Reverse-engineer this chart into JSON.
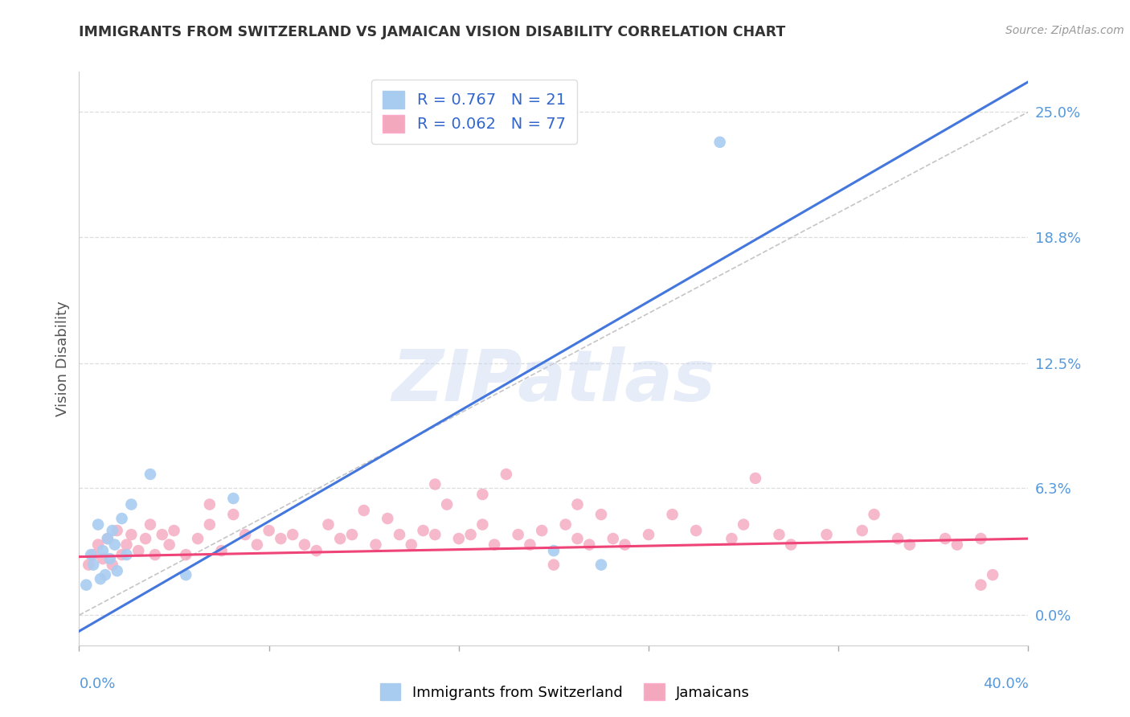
{
  "title": "IMMIGRANTS FROM SWITZERLAND VS JAMAICAN VISION DISABILITY CORRELATION CHART",
  "source": "Source: ZipAtlas.com",
  "ylabel": "Vision Disability",
  "ytick_labels": [
    "0.0%",
    "6.3%",
    "12.5%",
    "18.8%",
    "25.0%"
  ],
  "ytick_values": [
    0.0,
    6.3,
    12.5,
    18.8,
    25.0
  ],
  "xlim": [
    0.0,
    40.0
  ],
  "ylim": [
    -1.5,
    27.0
  ],
  "blue_color": "#A8CCF0",
  "pink_color": "#F4A8BE",
  "blue_line_color": "#4477DD",
  "pink_line_color": "#EE4477",
  "diagonal_color": "#BBBBBB",
  "watermark": "ZIPatlas",
  "legend_R_blue": "0.767",
  "legend_N_blue": "21",
  "legend_R_pink": "0.062",
  "legend_N_pink": "77",
  "legend_label_blue": "Immigrants from Switzerland",
  "legend_label_pink": "Jamaicans",
  "blue_line_x0": 0.0,
  "blue_line_y0": -0.8,
  "blue_line_x1": 40.0,
  "blue_line_y1": 26.5,
  "pink_line_x0": 0.0,
  "pink_line_y0": 2.9,
  "pink_line_x1": 40.0,
  "pink_line_y1": 3.8,
  "diag_x0": 0.0,
  "diag_y0": 0.0,
  "diag_x1": 40.0,
  "diag_y1": 25.0,
  "blue_scatter_x": [
    0.3,
    0.5,
    0.6,
    0.8,
    0.9,
    1.0,
    1.1,
    1.2,
    1.3,
    1.4,
    1.5,
    1.6,
    1.8,
    2.0,
    2.2,
    3.0,
    4.5,
    6.5,
    20.0,
    22.0,
    27.0
  ],
  "blue_scatter_y": [
    1.5,
    3.0,
    2.5,
    4.5,
    1.8,
    3.2,
    2.0,
    3.8,
    2.8,
    4.2,
    3.5,
    2.2,
    4.8,
    3.0,
    5.5,
    7.0,
    2.0,
    5.8,
    3.2,
    2.5,
    23.5
  ],
  "pink_scatter_x": [
    0.4,
    0.6,
    0.8,
    1.0,
    1.2,
    1.4,
    1.6,
    1.8,
    2.0,
    2.2,
    2.5,
    2.8,
    3.0,
    3.2,
    3.5,
    3.8,
    4.0,
    4.5,
    5.0,
    5.5,
    6.0,
    6.5,
    7.0,
    7.5,
    8.0,
    8.5,
    9.0,
    9.5,
    10.0,
    10.5,
    11.0,
    11.5,
    12.0,
    12.5,
    13.0,
    13.5,
    14.0,
    14.5,
    15.0,
    15.5,
    16.0,
    16.5,
    17.0,
    17.5,
    18.0,
    18.5,
    19.0,
    19.5,
    20.5,
    21.0,
    21.5,
    22.0,
    22.5,
    23.0,
    24.0,
    25.0,
    26.0,
    27.5,
    28.0,
    29.5,
    30.0,
    31.5,
    33.0,
    34.5,
    35.0,
    36.5,
    37.0,
    38.0,
    38.5,
    5.5,
    15.0,
    17.0,
    21.0,
    28.5,
    33.5,
    38.0,
    20.0
  ],
  "pink_scatter_y": [
    2.5,
    3.0,
    3.5,
    2.8,
    3.8,
    2.5,
    4.2,
    3.0,
    3.5,
    4.0,
    3.2,
    3.8,
    4.5,
    3.0,
    4.0,
    3.5,
    4.2,
    3.0,
    3.8,
    4.5,
    3.2,
    5.0,
    4.0,
    3.5,
    4.2,
    3.8,
    4.0,
    3.5,
    3.2,
    4.5,
    3.8,
    4.0,
    5.2,
    3.5,
    4.8,
    4.0,
    3.5,
    4.2,
    4.0,
    5.5,
    3.8,
    4.0,
    4.5,
    3.5,
    7.0,
    4.0,
    3.5,
    4.2,
    4.5,
    3.8,
    3.5,
    5.0,
    3.8,
    3.5,
    4.0,
    5.0,
    4.2,
    3.8,
    4.5,
    4.0,
    3.5,
    4.0,
    4.2,
    3.8,
    3.5,
    3.8,
    3.5,
    3.8,
    2.0,
    5.5,
    6.5,
    6.0,
    5.5,
    6.8,
    5.0,
    1.5,
    2.5
  ]
}
